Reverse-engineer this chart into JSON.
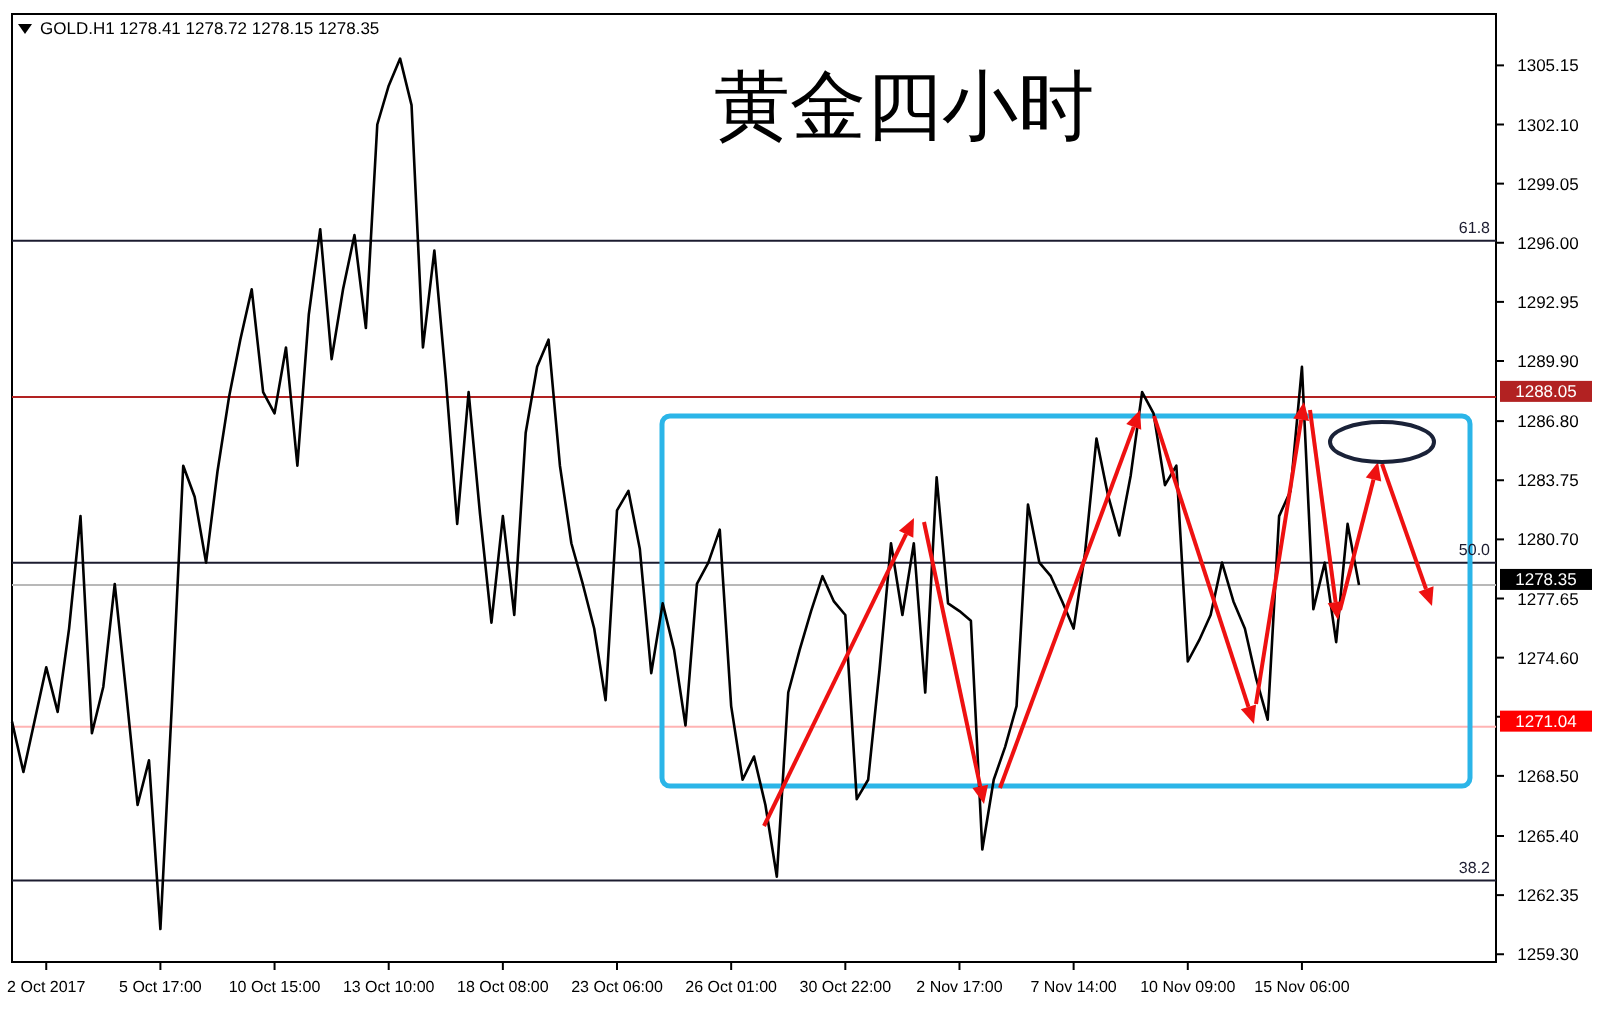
{
  "chart_data": {
    "type": "line",
    "title": "GOLD.H1  1278.41 1278.72 1278.15 1278.35",
    "annotations": [
      "黄金四小时",
      {
        "text": "61.8",
        "y": 1296.1
      },
      {
        "text": "50.0",
        "y": 1279.5
      },
      {
        "text": "38.2",
        "y": 1263.1
      }
    ],
    "categories": [
      null,
      null,
      null,
      "2 Oct 2017",
      null,
      null,
      null,
      null,
      null,
      null,
      null,
      null,
      null,
      "5 Oct 17:00",
      null,
      null,
      null,
      null,
      null,
      null,
      null,
      null,
      null,
      "10 Oct 15:00",
      null,
      null,
      null,
      null,
      null,
      null,
      null,
      null,
      null,
      "13 Oct 10:00",
      null,
      null,
      null,
      null,
      null,
      null,
      null,
      null,
      null,
      "18 Oct 08:00",
      null,
      null,
      null,
      null,
      null,
      null,
      null,
      null,
      null,
      "23 Oct 06:00",
      null,
      null,
      null,
      null,
      null,
      null,
      null,
      null,
      null,
      "26 Oct 01:00",
      null,
      null,
      null,
      null,
      null,
      null,
      null,
      null,
      null,
      "30 Oct 22:00",
      null,
      null,
      null,
      null,
      null,
      null,
      null,
      null,
      null,
      "2 Nov 17:00",
      null,
      null,
      null,
      null,
      null,
      null,
      null,
      null,
      null,
      "7 Nov 14:00",
      null,
      null,
      null,
      null,
      null,
      null,
      null,
      null,
      null,
      "10 Nov 09:00",
      null,
      null,
      null,
      null,
      null,
      null,
      null,
      null,
      null,
      "15 Nov 06:00",
      null,
      null,
      null,
      null,
      null,
      null,
      null,
      null,
      null,
      null,
      null,
      null,
      null,
      null,
      null,
      null,
      null
    ],
    "ylim": [
      1258.9,
      1307.8
    ],
    "yticks": [
      1305.15,
      {
        "value": 1302.1,
        "label": "1302.10"
      },
      1299.05,
      {
        "value": 1296,
        "label": "1296.00"
      },
      1292.95,
      {
        "value": 1289.9,
        "label": "1289.90"
      },
      {
        "value": 1286.8,
        "label": "1286.80"
      },
      1283.75,
      {
        "value": 1280.7,
        "label": "1280.70"
      },
      1277.65,
      {
        "value": 1274.6,
        "label": "1274.60"
      },
      {
        "value": 1271.55,
        "label": null
      },
      {
        "value": 1268.5,
        "label": "1268.50"
      },
      {
        "value": 1265.4,
        "label": "1265.40"
      },
      1262.35,
      {
        "value": 1259.3,
        "label": "1259.30"
      }
    ],
    "grid": false,
    "marker": "none",
    "line_style": "solid",
    "ref_lines": [
      {
        "axis": "y",
        "value": 1296.1,
        "color": "#1c1c30"
      },
      {
        "axis": "y",
        "value": 1279.5,
        "color": "#1c1c30"
      },
      {
        "axis": "y",
        "value": 1263.1,
        "color": "#1c1c30"
      },
      {
        "axis": "y",
        "value": 1288.05,
        "label": "1288.05",
        "color": "#b22222"
      },
      {
        "axis": "y",
        "value": 1278.35,
        "label": "1278.35",
        "color": "#b8b8b8"
      },
      {
        "axis": "y",
        "value": 1271.04,
        "label": "1271.04",
        "color": "#ffb4b4"
      }
    ],
    "series": [
      {
        "color": "#000000",
        "values": [
          1271.3,
          1268.7,
          1271.4,
          1274.1,
          1271.8,
          1276.1,
          1281.9,
          1270.7,
          1273.1,
          1278.4,
          1272.8,
          1267.0,
          1269.3,
          1260.6,
          1272.1,
          1284.5,
          1282.9,
          1279.5,
          1284.2,
          1288.0,
          1291.0,
          1293.6,
          1288.3,
          1287.2,
          1290.6,
          1284.5,
          1292.3,
          1296.7,
          1290.0,
          1293.6,
          1296.4,
          1291.6,
          1302.1,
          1304.1,
          1305.5,
          1303.1,
          1290.6,
          1295.6,
          1289.0,
          1281.5,
          1288.3,
          1282.0,
          1276.4,
          1281.9,
          1276.8,
          1286.2,
          1289.6,
          1291.0,
          1284.5,
          1280.5,
          1278.4,
          1276.1,
          1272.4,
          1282.2,
          1283.2,
          1280.2,
          1273.8,
          1277.4,
          1275.0,
          1271.1,
          1278.4,
          1279.5,
          1281.2,
          1272.1,
          1268.3,
          1269.5,
          1267.0,
          1263.3,
          1272.8,
          1275.0,
          1277.0,
          1278.8,
          1277.5,
          1276.8,
          1267.3,
          1268.3,
          1274.0,
          1280.5,
          1276.8,
          1280.5,
          1272.8,
          1283.9,
          1277.4,
          1277.0,
          1276.5,
          1264.7,
          1268.3,
          1270.0,
          1272.1,
          1282.5,
          1279.5,
          1278.8,
          1277.5,
          1276.1,
          1280.0,
          1285.9,
          1283.0,
          1280.9,
          1284.0,
          1288.3,
          1287.2,
          1283.5,
          1284.5,
          1274.4,
          1275.5,
          1276.8,
          1279.5,
          1277.5,
          1276.1,
          1273.5,
          1271.4,
          1281.9,
          1283.2,
          1289.6,
          1277.1,
          1279.5,
          1275.4,
          1281.5,
          1278.35,
          null,
          null,
          null,
          null,
          null,
          null,
          null,
          null,
          null,
          null,
          null,
          null
        ]
      }
    ]
  }
}
